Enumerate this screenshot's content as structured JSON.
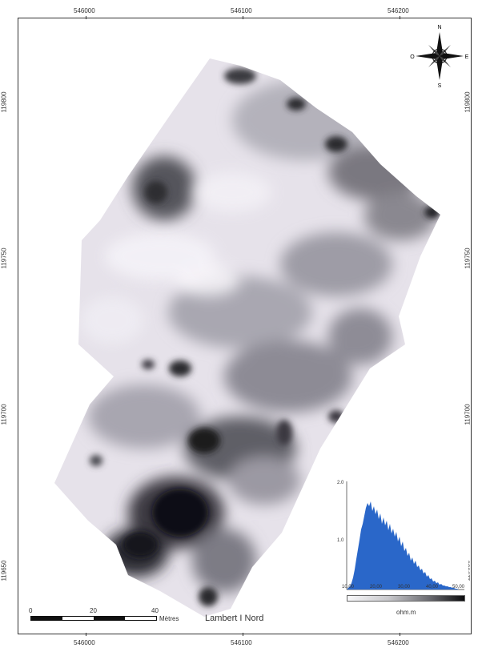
{
  "coords": {
    "top": [
      "546000",
      "546100",
      "546200"
    ],
    "bottom": [
      "546000",
      "546100",
      "546200"
    ],
    "left": [
      "119800",
      "119750",
      "119700",
      "119650"
    ],
    "right": [
      "119800",
      "119750",
      "119700",
      "119650"
    ]
  },
  "compass": {
    "n": "N",
    "s": "S",
    "e": "E",
    "w": "O"
  },
  "scale": {
    "labels": [
      "0",
      "20",
      "40"
    ],
    "unit": "Mètres"
  },
  "projection": "Lambert I Nord",
  "histogram": {
    "y_max_label": "2.0",
    "y_mid_label": "1.0",
    "x_ticks": [
      "10,00",
      "20,00",
      "30,00",
      "40,00",
      "50,00"
    ],
    "legend_label": "ohm.m"
  },
  "colors": {
    "map_light": "#e8e4ec",
    "map_dark": "#151518",
    "hist_fill": "#2a67c9"
  }
}
